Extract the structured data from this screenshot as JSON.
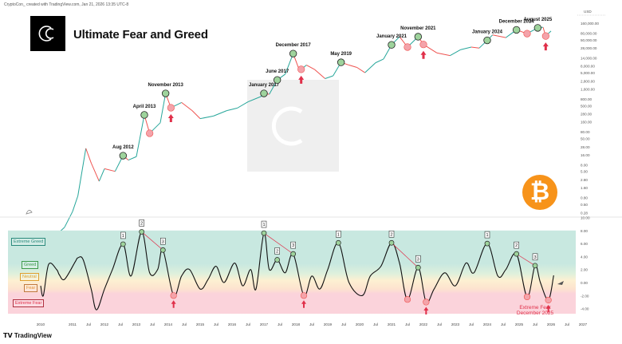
{
  "header": {
    "credit": "CryptoCon_ created with TradingView.com, Jan 21, 2026 13:35 UTC-8",
    "title": "Ultimate Fear and Greed",
    "footer_brand": "TradingView",
    "logo_icon": "cryptocon-c-logo",
    "coin_icon": "bitcoin-logo",
    "coin_symbol": "₿"
  },
  "colors": {
    "up": "#26a69a",
    "down": "#ef5350",
    "oscillator": "#111111",
    "green_marker": "#9ed39c",
    "red_marker": "#f4a3aa",
    "accent_red": "#e0304a",
    "bitcoin": "#f7931a",
    "extreme_greed": "#c8e8e0",
    "greed": "#dff0dc",
    "neutral": "#fdf0d2",
    "fear": "#fde3cf",
    "extreme_fear": "#fbd3db"
  },
  "bands": {
    "extreme_greed": "Extreme Greed",
    "greed": "Greed",
    "neutral": "Neutral",
    "fear": "Fear",
    "extreme_fear": "Extreme Fear"
  },
  "callout": {
    "line1": "Extreme Fear",
    "line2": "December 2025"
  },
  "chart_data": [
    {
      "type": "line",
      "scale": "log",
      "currency_label": "USD",
      "y_ticks": [
        "160,000.00",
        "80,000.00",
        "50,000.00",
        "28,000.00",
        "14,000.00",
        "8,000.00",
        "5,000.00",
        "2,800.00",
        "1,600.00",
        "800.00",
        "500.00",
        "280.00",
        "160.00",
        "80.00",
        "50.00",
        "28.00",
        "16.00",
        "8.00",
        "5.00",
        "2.80",
        "1.60",
        "0.80",
        "0.50",
        "0.28"
      ],
      "y_tick_values": [
        160000,
        80000,
        50000,
        28000,
        14000,
        8000,
        5000,
        2800,
        1600,
        800,
        500,
        280,
        160,
        80,
        50,
        28,
        16,
        8,
        5,
        2.8,
        1.6,
        0.8,
        0.5,
        0.28
      ],
      "x_ticks": [
        {
          "label": "2010",
          "date": "2010-01"
        },
        {
          "label": "2011",
          "date": "2011-01"
        },
        {
          "label": "Jul",
          "date": "2011-07"
        },
        {
          "label": "2012",
          "date": "2012-01"
        },
        {
          "label": "Jul",
          "date": "2012-07"
        },
        {
          "label": "2013",
          "date": "2013-01"
        },
        {
          "label": "Jul",
          "date": "2013-07"
        },
        {
          "label": "2014",
          "date": "2014-01"
        },
        {
          "label": "Jul",
          "date": "2014-07"
        },
        {
          "label": "2015",
          "date": "2015-01"
        },
        {
          "label": "Jul",
          "date": "2015-07"
        },
        {
          "label": "2016",
          "date": "2016-01"
        },
        {
          "label": "Jul",
          "date": "2016-07"
        },
        {
          "label": "2017",
          "date": "2017-01"
        },
        {
          "label": "Jul",
          "date": "2017-07"
        },
        {
          "label": "2018",
          "date": "2018-01"
        },
        {
          "label": "Jul",
          "date": "2018-07"
        },
        {
          "label": "2019",
          "date": "2019-01"
        },
        {
          "label": "Jul",
          "date": "2019-07"
        },
        {
          "label": "2020",
          "date": "2020-01"
        },
        {
          "label": "Jul",
          "date": "2020-07"
        },
        {
          "label": "2021",
          "date": "2021-01"
        },
        {
          "label": "Jul",
          "date": "2021-07"
        },
        {
          "label": "2022",
          "date": "2022-01"
        },
        {
          "label": "Jul",
          "date": "2022-07"
        },
        {
          "label": "2023",
          "date": "2023-01"
        },
        {
          "label": "Jul",
          "date": "2023-07"
        },
        {
          "label": "2024",
          "date": "2024-01"
        },
        {
          "label": "Jul",
          "date": "2024-07"
        },
        {
          "label": "2025",
          "date": "2025-01"
        },
        {
          "label": "Jul",
          "date": "2025-07"
        },
        {
          "label": "2026",
          "date": "2026-01"
        },
        {
          "label": "Jul",
          "date": "2026-07"
        },
        {
          "label": "2027",
          "date": "2027-01"
        }
      ],
      "series": [
        [
          [
            "2010-07",
            0.06
          ],
          [
            "2010-10",
            0.1
          ],
          [
            "2011-01",
            0.3
          ],
          [
            "2011-03",
            0.9
          ],
          [
            "2011-06",
            25
          ],
          [
            "2011-08",
            9
          ],
          [
            "2011-11",
            2.5
          ],
          [
            "2012-01",
            6
          ],
          [
            "2012-05",
            5
          ],
          [
            "2012-08",
            15
          ],
          [
            "2012-10",
            11
          ],
          [
            "2013-01",
            14
          ],
          [
            "2013-04",
            260
          ],
          [
            "2013-06",
            72
          ],
          [
            "2013-10",
            150
          ],
          [
            "2013-12",
            1170
          ],
          [
            "2014-02",
            430
          ],
          [
            "2014-06",
            620
          ],
          [
            "2014-10",
            350
          ],
          [
            "2015-01",
            200
          ],
          [
            "2015-06",
            240
          ],
          [
            "2015-11",
            350
          ],
          [
            "2016-03",
            420
          ],
          [
            "2016-07",
            650
          ],
          [
            "2016-12",
            950
          ],
          [
            "2017-01",
            1170
          ],
          [
            "2017-03",
            1100
          ],
          [
            "2017-06",
            3000
          ],
          [
            "2017-09",
            4500
          ],
          [
            "2017-12",
            19000
          ],
          [
            "2018-02",
            7000
          ],
          [
            "2018-03",
            6300
          ],
          [
            "2018-05",
            8500
          ],
          [
            "2018-08",
            6300
          ],
          [
            "2018-12",
            3300
          ],
          [
            "2019-03",
            4000
          ],
          [
            "2019-06",
            10300
          ],
          [
            "2019-09",
            8500
          ],
          [
            "2019-12",
            7200
          ],
          [
            "2020-03",
            5000
          ],
          [
            "2020-07",
            10000
          ],
          [
            "2020-10",
            13000
          ],
          [
            "2021-01",
            35000
          ],
          [
            "2021-04",
            62000
          ],
          [
            "2021-07",
            30000
          ],
          [
            "2021-11",
            62000
          ],
          [
            "2022-01",
            36000
          ],
          [
            "2022-06",
            20000
          ],
          [
            "2022-11",
            16500
          ],
          [
            "2023-03",
            25000
          ],
          [
            "2023-07",
            30000
          ],
          [
            "2023-10",
            28000
          ],
          [
            "2024-01",
            48000
          ],
          [
            "2024-03",
            70000
          ],
          [
            "2024-08",
            58000
          ],
          [
            "2024-12",
            100000
          ],
          [
            "2025-04",
            77000
          ],
          [
            "2025-08",
            115000
          ],
          [
            "2025-10",
            120000
          ],
          [
            "2025-11",
            65000
          ],
          [
            "2026-01",
            92000
          ]
        ]
      ],
      "peaks": [
        {
          "label": "Aug 2012",
          "date": "2012-08",
          "price": 15
        },
        {
          "label": "April 2013",
          "date": "2013-04",
          "price": 260
        },
        {
          "label": "November 2013",
          "date": "2013-12",
          "price": 1170
        },
        {
          "label": "January 2017",
          "date": "2017-01",
          "price": 1170
        },
        {
          "label": "June 2017",
          "date": "2017-06",
          "price": 3000
        },
        {
          "label": "December 2017",
          "date": "2017-12",
          "price": 19000
        },
        {
          "label": "May 2019",
          "date": "2019-06",
          "price": 10300
        },
        {
          "label": "January 2021",
          "date": "2021-01",
          "price": 35000
        },
        {
          "label": "November 2021",
          "date": "2021-11",
          "price": 62000
        },
        {
          "label": "January 2024",
          "date": "2024-01",
          "price": 48000
        },
        {
          "label": "December 2024",
          "date": "2024-12",
          "price": 100000
        },
        {
          "label": "August 2025",
          "date": "2025-08",
          "price": 115000
        }
      ],
      "bottoms": [
        {
          "date": "2013-06",
          "price": 72,
          "arrow": false
        },
        {
          "date": "2014-02",
          "price": 430,
          "arrow": true
        },
        {
          "date": "2018-03",
          "price": 6300,
          "arrow": true
        },
        {
          "date": "2021-07",
          "price": 30000,
          "arrow": false
        },
        {
          "date": "2022-01",
          "price": 36000,
          "arrow": true
        },
        {
          "date": "2025-04",
          "price": 77000,
          "arrow": false
        },
        {
          "date": "2025-11",
          "price": 65000,
          "arrow": true
        }
      ]
    },
    {
      "type": "line",
      "y_ticks": [
        "10.00",
        "8.00",
        "6.00",
        "4.00",
        "2.00",
        "0.00",
        "-2.00",
        "-4.00"
      ],
      "y_tick_values": [
        10,
        8,
        6,
        4,
        2,
        0,
        -2,
        -4
      ],
      "band_ranges": {
        "extreme_greed": [
          4.5,
          8
        ],
        "greed": [
          2.5,
          4.5
        ],
        "neutral": [
          1,
          2.5
        ],
        "fear": [
          -1,
          1
        ],
        "extreme_fear": [
          -4.8,
          -1
        ]
      },
      "series": [
        [
          [
            "2010-01",
            -0.5
          ],
          [
            "2010-02",
            -2
          ],
          [
            "2010-04",
            2.8
          ],
          [
            "2010-07",
            2.0
          ],
          [
            "2010-08",
            1.2
          ],
          [
            "2010-10",
            0.5
          ],
          [
            "2011-02",
            3.2
          ],
          [
            "2011-03",
            3.8
          ],
          [
            "2011-05",
            3.5
          ],
          [
            "2011-08",
            -1
          ],
          [
            "2011-10",
            -4.2
          ],
          [
            "2012-01",
            -1
          ],
          [
            "2012-04",
            2
          ],
          [
            "2012-08",
            5.9
          ],
          [
            "2012-11",
            1
          ],
          [
            "2013-03",
            7.8
          ],
          [
            "2013-06",
            1.5
          ],
          [
            "2013-09",
            2
          ],
          [
            "2013-11",
            5
          ],
          [
            "2014-03",
            -2
          ],
          [
            "2014-06",
            1
          ],
          [
            "2014-09",
            2
          ],
          [
            "2015-01",
            -1
          ],
          [
            "2015-04",
            0.5
          ],
          [
            "2015-07",
            2.5
          ],
          [
            "2015-10",
            0
          ],
          [
            "2016-02",
            3
          ],
          [
            "2016-05",
            -0.5
          ],
          [
            "2016-08",
            2
          ],
          [
            "2016-10",
            -1
          ],
          [
            "2017-01",
            7.6
          ],
          [
            "2017-03",
            2
          ],
          [
            "2017-06",
            3.5
          ],
          [
            "2017-09",
            1.5
          ],
          [
            "2017-12",
            4.4
          ],
          [
            "2018-04",
            -2
          ],
          [
            "2018-07",
            1
          ],
          [
            "2018-10",
            -1
          ],
          [
            "2019-01",
            2
          ],
          [
            "2019-05",
            6.1
          ],
          [
            "2019-09",
            0
          ],
          [
            "2020-02",
            -2
          ],
          [
            "2020-05",
            1
          ],
          [
            "2020-09",
            2.5
          ],
          [
            "2021-01",
            6.1
          ],
          [
            "2021-04",
            3
          ],
          [
            "2021-07",
            -2.6
          ],
          [
            "2021-11",
            2.3
          ],
          [
            "2022-02",
            -3
          ],
          [
            "2022-05",
            -1
          ],
          [
            "2022-09",
            1.5
          ],
          [
            "2023-01",
            -0.5
          ],
          [
            "2023-05",
            3
          ],
          [
            "2023-08",
            1.5
          ],
          [
            "2024-01",
            6
          ],
          [
            "2024-05",
            1
          ],
          [
            "2024-08",
            2
          ],
          [
            "2024-12",
            4.4
          ],
          [
            "2025-04",
            -2.2
          ],
          [
            "2025-07",
            2.6
          ],
          [
            "2025-09",
            0
          ],
          [
            "2025-12",
            -2.7
          ],
          [
            "2026-02",
            1.1
          ]
        ]
      ],
      "peak_markers": [
        {
          "label": "1",
          "date": "2012-08",
          "value": 5.9
        },
        {
          "label": "2",
          "date": "2013-03",
          "value": 7.8
        },
        {
          "label": "3",
          "date": "2013-11",
          "value": 5
        },
        {
          "label": "1",
          "date": "2017-01",
          "value": 7.6
        },
        {
          "label": "2",
          "date": "2017-06",
          "value": 3.5
        },
        {
          "label": "3",
          "date": "2017-12",
          "value": 4.4
        },
        {
          "label": "1",
          "date": "2019-05",
          "value": 6.1
        },
        {
          "label": "2",
          "date": "2021-01",
          "value": 6.1
        },
        {
          "label": "3",
          "date": "2021-11",
          "value": 2.3
        },
        {
          "label": "1",
          "date": "2024-01",
          "value": 6
        },
        {
          "label": "2",
          "date": "2024-12",
          "value": 4.4
        },
        {
          "label": "3",
          "date": "2025-07",
          "value": 2.6
        }
      ],
      "divergence_lines": [
        [
          {
            "date": "2013-03",
            "value": 7.8
          },
          {
            "date": "2013-11",
            "value": 5
          }
        ],
        [
          {
            "date": "2017-01",
            "value": 7.6
          },
          {
            "date": "2017-12",
            "value": 4.4
          }
        ],
        [
          {
            "date": "2021-01",
            "value": 6.1
          },
          {
            "date": "2021-11",
            "value": 2.3
          }
        ],
        [
          {
            "date": "2024-12",
            "value": 4.4
          },
          {
            "date": "2025-07",
            "value": 2.6
          }
        ]
      ],
      "trough_markers": [
        {
          "date": "2014-03",
          "value": -2,
          "arrow": true
        },
        {
          "date": "2018-04",
          "value": -2,
          "arrow": true
        },
        {
          "date": "2021-07",
          "value": -2.6,
          "arrow": false
        },
        {
          "date": "2022-02",
          "value": -3,
          "arrow": true
        },
        {
          "date": "2025-04",
          "value": -2.2,
          "arrow": false
        },
        {
          "date": "2025-12",
          "value": -2.7,
          "arrow": true
        }
      ]
    }
  ]
}
